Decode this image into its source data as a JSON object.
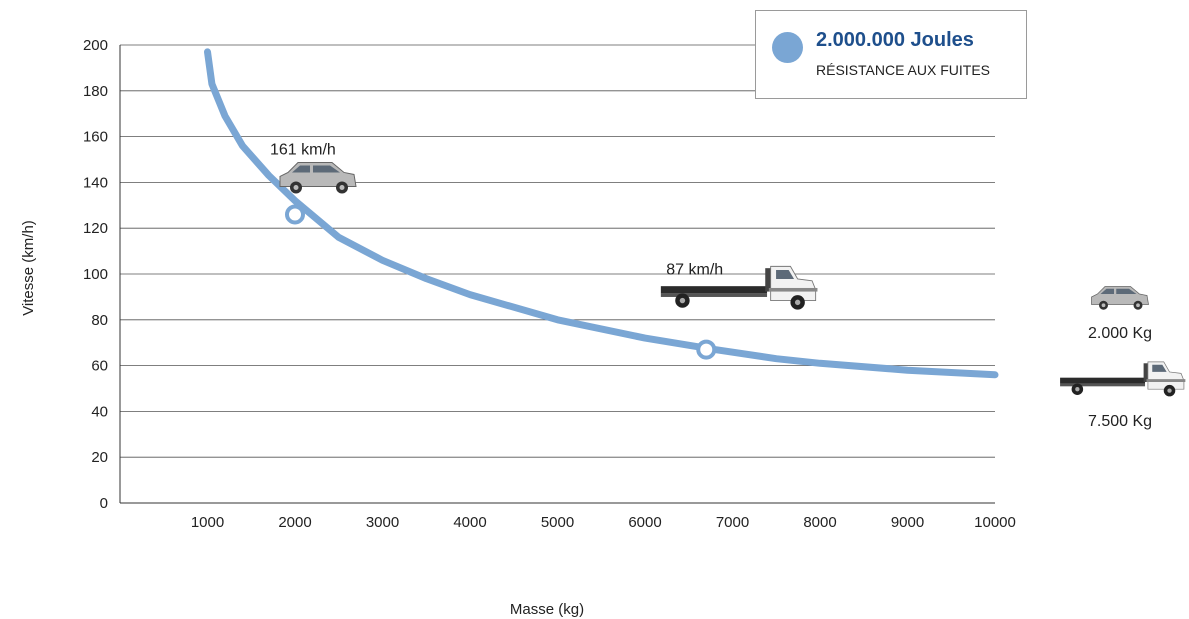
{
  "chart_data": {
    "type": "line",
    "xlabel": "Masse (kg)",
    "ylabel": "Vitesse (km/h)",
    "x_ticks": [
      1000,
      2000,
      3000,
      4000,
      5000,
      6000,
      7000,
      8000,
      9000,
      10000
    ],
    "y_ticks": [
      0,
      20,
      40,
      60,
      80,
      100,
      120,
      140,
      160,
      180,
      200
    ],
    "xlim": [
      0,
      10000
    ],
    "ylim": [
      0,
      200
    ],
    "grid": "horizontal",
    "series": [
      {
        "name": "2.000.000 Joules",
        "color": "#7aa6d4",
        "x": [
          1000,
          1050,
          1200,
          1400,
          1700,
          2000,
          2500,
          3000,
          3500,
          4000,
          5000,
          6000,
          6800,
          7500,
          8000,
          9000,
          10000
        ],
        "y": [
          197,
          183,
          169,
          156,
          143,
          132,
          116,
          106,
          98,
          91,
          80,
          72,
          67,
          63,
          61,
          58,
          56
        ]
      }
    ],
    "highlight_points": [
      {
        "x": 2000,
        "y": 126,
        "label": "161 km/h",
        "vehicle": "suv-icon"
      },
      {
        "x": 6700,
        "y": 67,
        "label": "87 km/h",
        "vehicle": "flatbed-truck-icon"
      }
    ],
    "legend": {
      "title": "2.000.000 Joules",
      "subtitle": "RÉSISTANCE AUX FUITES",
      "position": "top-right"
    },
    "side_key": [
      {
        "label": "2.000 Kg",
        "vehicle": "suv-icon"
      },
      {
        "label": "7.500 Kg",
        "vehicle": "flatbed-truck-icon"
      }
    ]
  }
}
